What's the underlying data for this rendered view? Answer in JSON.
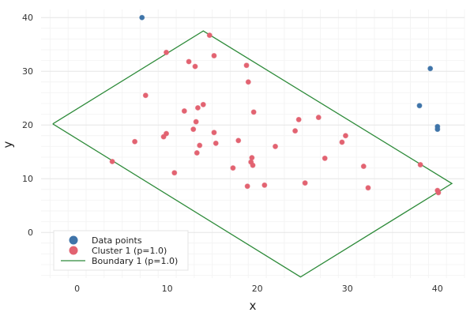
{
  "chart_data": {
    "type": "scatter",
    "xlabel": "x",
    "ylabel": "y",
    "xlim": [
      -4,
      43
    ],
    "ylim": [
      -8.5,
      41.5
    ],
    "xticks": [
      0,
      10,
      20,
      30,
      40
    ],
    "yticks": [
      0,
      10,
      20,
      30,
      40
    ],
    "grid": true,
    "legend_position": "bottom-left",
    "series": [
      {
        "name": "Data points",
        "kind": "points",
        "color": "#3f74a9",
        "points": [
          [
            7.2,
            40.0
          ],
          [
            39.2,
            30.5
          ],
          [
            38.0,
            23.6
          ],
          [
            40.0,
            19.7
          ],
          [
            40.0,
            19.2
          ]
        ]
      },
      {
        "name": "Cluster 1 (p=1.0)",
        "kind": "points",
        "color": "#e26371",
        "points": [
          [
            14.7,
            36.7
          ],
          [
            9.9,
            33.5
          ],
          [
            12.4,
            31.8
          ],
          [
            15.2,
            32.9
          ],
          [
            13.1,
            30.9
          ],
          [
            18.8,
            31.1
          ],
          [
            19.0,
            28.0
          ],
          [
            7.6,
            25.5
          ],
          [
            13.4,
            23.2
          ],
          [
            14.0,
            23.8
          ],
          [
            11.9,
            22.6
          ],
          [
            19.6,
            22.4
          ],
          [
            13.2,
            20.6
          ],
          [
            12.9,
            19.2
          ],
          [
            15.2,
            18.6
          ],
          [
            9.9,
            18.4
          ],
          [
            9.6,
            17.8
          ],
          [
            6.4,
            16.9
          ],
          [
            15.4,
            16.6
          ],
          [
            17.9,
            17.1
          ],
          [
            13.6,
            16.2
          ],
          [
            22.0,
            16.0
          ],
          [
            24.2,
            18.9
          ],
          [
            24.6,
            21.0
          ],
          [
            26.8,
            21.4
          ],
          [
            29.8,
            18.0
          ],
          [
            29.4,
            16.8
          ],
          [
            13.3,
            14.8
          ],
          [
            19.4,
            13.9
          ],
          [
            19.3,
            13.1
          ],
          [
            19.5,
            12.5
          ],
          [
            17.3,
            12.0
          ],
          [
            10.8,
            11.1
          ],
          [
            27.5,
            13.8
          ],
          [
            31.8,
            12.3
          ],
          [
            38.1,
            12.6
          ],
          [
            3.9,
            13.2
          ],
          [
            25.3,
            9.2
          ],
          [
            20.8,
            8.8
          ],
          [
            18.9,
            8.6
          ],
          [
            32.3,
            8.3
          ],
          [
            40.0,
            7.8
          ],
          [
            40.1,
            7.4
          ]
        ]
      },
      {
        "name": "Boundary 1 (p=1.0)",
        "kind": "line",
        "color": "#2e8b3a",
        "points": [
          [
            -2.7,
            20.2
          ],
          [
            14.0,
            37.5
          ],
          [
            41.6,
            9.1
          ],
          [
            24.8,
            -8.3
          ],
          [
            -2.7,
            20.2
          ]
        ]
      }
    ]
  }
}
